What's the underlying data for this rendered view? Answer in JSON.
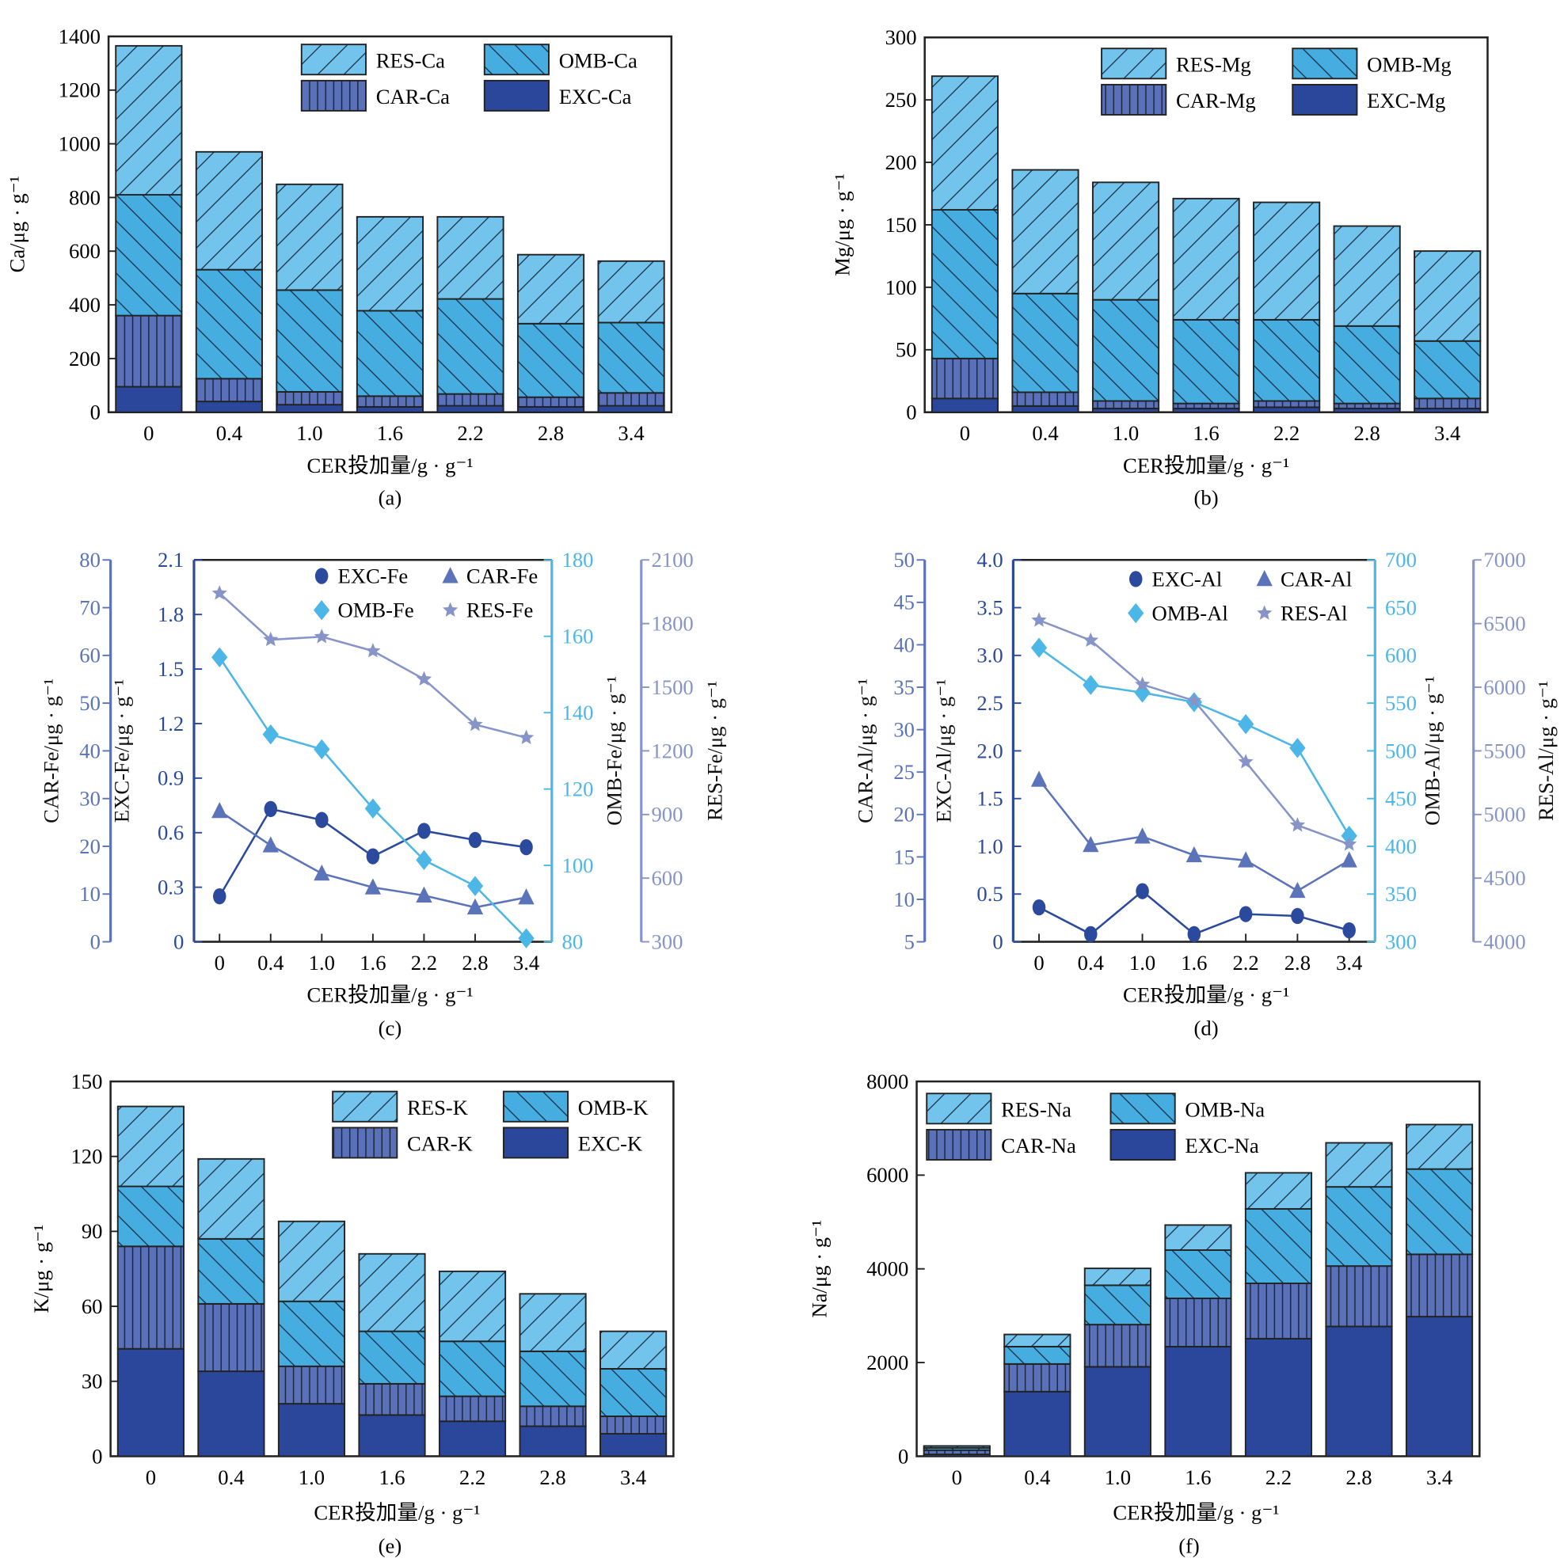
{
  "colors": {
    "RES": "#72c4ec",
    "OMB": "#45ade0",
    "CAR": "#5a70b8",
    "EXC": "#2b479b",
    "line_EXC": "#2b4a9e",
    "line_CAR": "#5b73b8",
    "line_OMB": "#4cb6e6",
    "line_RES": "#8794c8"
  },
  "chart_data": [
    {
      "type": "bar",
      "stacked": true,
      "caption": "(a)",
      "ylabel": "Ca/μg · g⁻¹",
      "xlabel": "CER投加量/g · g⁻¹",
      "categories": [
        "0",
        "0.4",
        "1.0",
        "1.6",
        "2.2",
        "2.8",
        "3.4"
      ],
      "ylim": [
        0,
        1400
      ],
      "yticks": [
        "0",
        "200",
        "400",
        "600",
        "800",
        "1000",
        "1200",
        "1400"
      ],
      "legend": "top-right",
      "series": [
        {
          "name": "EXC-Ca",
          "key": "EXC",
          "values": [
            95,
            40,
            28,
            20,
            24,
            20,
            24
          ]
        },
        {
          "name": "CAR-Ca",
          "key": "CAR",
          "values": [
            265,
            85,
            48,
            40,
            44,
            36,
            48
          ]
        },
        {
          "name": "OMB-Ca",
          "key": "OMB",
          "values": [
            450,
            406,
            379,
            318,
            354,
            274,
            262
          ]
        },
        {
          "name": "RES-Ca",
          "key": "RES",
          "values": [
            555,
            439,
            394,
            350,
            306,
            257,
            229
          ]
        }
      ]
    },
    {
      "type": "bar",
      "stacked": true,
      "caption": "(b)",
      "ylabel": "Mg/μg · g⁻¹",
      "xlabel": "CER投加量/g · g⁻¹",
      "categories": [
        "0",
        "0.4",
        "1.0",
        "1.6",
        "2.2",
        "2.8",
        "3.4"
      ],
      "ylim": [
        0,
        300
      ],
      "yticks": [
        "0",
        "50",
        "100",
        "150",
        "200",
        "250",
        "300"
      ],
      "legend": "top-right",
      "series": [
        {
          "name": "EXC-Mg",
          "key": "EXC",
          "values": [
            11,
            5,
            3,
            3,
            4,
            3,
            3
          ]
        },
        {
          "name": "CAR-Mg",
          "key": "CAR",
          "values": [
            32,
            11,
            6,
            4,
            5,
            4,
            8
          ]
        },
        {
          "name": "OMB-Mg",
          "key": "OMB",
          "values": [
            119,
            79,
            81,
            67,
            65,
            62,
            46
          ]
        },
        {
          "name": "RES-Mg",
          "key": "RES",
          "values": [
            107,
            99,
            94,
            97,
            94,
            80,
            72
          ]
        }
      ]
    },
    {
      "type": "line",
      "caption": "(c)",
      "xlabel": "CER投加量/g · g⁻¹",
      "categories": [
        "0",
        "0.4",
        "1.0",
        "1.6",
        "2.2",
        "2.8",
        "3.4"
      ],
      "legend": "top-right",
      "series": [
        {
          "name": "EXC-Fe",
          "key": "EXC",
          "marker": "circle",
          "ylabel": "EXC-Fe/μg · g⁻¹",
          "ylim": [
            0,
            2.1
          ],
          "yticks": [
            "0",
            "0.3",
            "0.6",
            "0.9",
            "1.2",
            "1.5",
            "1.8",
            "2.1"
          ],
          "values": [
            0.25,
            0.73,
            0.67,
            0.47,
            0.61,
            0.56,
            0.52
          ]
        },
        {
          "name": "CAR-Fe",
          "key": "CAR",
          "marker": "triangle",
          "ylabel": "CAR-Fe/μg · g⁻¹",
          "ylim": [
            0,
            80
          ],
          "yticks": [
            "0",
            "10",
            "20",
            "30",
            "40",
            "50",
            "60",
            "70",
            "80"
          ],
          "values": [
            27.4,
            20.2,
            14.3,
            11.4,
            9.7,
            7.2,
            9.3
          ]
        },
        {
          "name": "OMB-Fe",
          "key": "OMB",
          "marker": "diamond",
          "ylabel": "OMB-Fe/μg · g⁻¹",
          "ylim": [
            80,
            180
          ],
          "yticks": [
            "80",
            "100",
            "120",
            "140",
            "160",
            "180"
          ],
          "values": [
            154.5,
            134.3,
            130.4,
            114.9,
            101.4,
            94.6,
            80.9
          ]
        },
        {
          "name": "RES-Fe",
          "key": "RES",
          "marker": "star",
          "ylabel": "RES-Fe/μg · g⁻¹",
          "ylim": [
            300,
            2100
          ],
          "yticks": [
            "300",
            "600",
            "900",
            "1200",
            "1500",
            "1800",
            "2100"
          ],
          "values": [
            1943,
            1724,
            1738,
            1671,
            1538,
            1324,
            1262
          ]
        }
      ]
    },
    {
      "type": "line",
      "caption": "(d)",
      "xlabel": "CER投加量/g · g⁻¹",
      "categories": [
        "0",
        "0.4",
        "1.0",
        "1.6",
        "2.2",
        "2.8",
        "3.4"
      ],
      "legend": "top-right",
      "series": [
        {
          "name": "EXC-Al",
          "key": "EXC",
          "marker": "circle",
          "ylabel": "EXC-Al/μg · g⁻¹",
          "ylim": [
            0,
            4.0
          ],
          "yticks": [
            "0",
            "0.5",
            "1.0",
            "1.5",
            "2.0",
            "2.5",
            "3.0",
            "3.5",
            "4.0"
          ],
          "values": [
            0.36,
            0.08,
            0.53,
            0.08,
            0.29,
            0.27,
            0.12
          ]
        },
        {
          "name": "CAR-Al",
          "key": "CAR",
          "marker": "triangle",
          "ylabel": "CAR-Al/μg · g⁻¹",
          "ylim": [
            5,
            50
          ],
          "yticks": [
            "5",
            "10",
            "15",
            "20",
            "25",
            "30",
            "35",
            "40",
            "45",
            "50"
          ],
          "values": [
            24.1,
            16.4,
            17.4,
            15.2,
            14.6,
            11.0,
            14.6
          ]
        },
        {
          "name": "OMB-Al",
          "key": "OMB",
          "marker": "diamond",
          "ylabel": "OMB-Al/μg · g⁻¹",
          "ylim": [
            300,
            700
          ],
          "yticks": [
            "300",
            "350",
            "400",
            "450",
            "500",
            "550",
            "600",
            "650",
            "700"
          ],
          "values": [
            608,
            569,
            561,
            551,
            528,
            503,
            411
          ]
        },
        {
          "name": "RES-Al",
          "key": "RES",
          "marker": "star",
          "ylabel": "RES-Al/μg · g⁻¹",
          "ylim": [
            4000,
            7000
          ],
          "yticks": [
            "4000",
            "4500",
            "5000",
            "5500",
            "6000",
            "6500",
            "7000"
          ],
          "values": [
            6526,
            6368,
            6021,
            5894,
            5413,
            4916,
            4766
          ]
        }
      ]
    },
    {
      "type": "bar",
      "stacked": true,
      "caption": "(e)",
      "ylabel": "K/μg · g⁻¹",
      "xlabel": "CER投加量/g · g⁻¹",
      "categories": [
        "0",
        "0.4",
        "1.0",
        "1.6",
        "2.2",
        "2.8",
        "3.4"
      ],
      "ylim": [
        0,
        150
      ],
      "yticks": [
        "0",
        "30",
        "60",
        "90",
        "120",
        "150"
      ],
      "legend": "top-right",
      "series": [
        {
          "name": "EXC-K",
          "key": "EXC",
          "values": [
            43,
            34,
            21,
            16.5,
            14,
            12,
            9
          ]
        },
        {
          "name": "CAR-K",
          "key": "CAR",
          "values": [
            41,
            27,
            15,
            12.5,
            10,
            8,
            7
          ]
        },
        {
          "name": "OMB-K",
          "key": "OMB",
          "values": [
            24,
            26,
            26,
            21,
            22,
            22,
            19
          ]
        },
        {
          "name": "RES-K",
          "key": "RES",
          "values": [
            32,
            32,
            32,
            31,
            28,
            23,
            15
          ]
        }
      ]
    },
    {
      "type": "bar",
      "stacked": true,
      "caption": "(f)",
      "ylabel": "Na/μg · g⁻¹",
      "xlabel": "CER投加量/g · g⁻¹",
      "categories": [
        "0",
        "0.4",
        "1.0",
        "1.6",
        "2.2",
        "2.8",
        "3.4"
      ],
      "ylim": [
        0,
        8000
      ],
      "yticks": [
        "0",
        "2000",
        "4000",
        "6000",
        "8000"
      ],
      "legend": "top-left",
      "series": [
        {
          "name": "EXC-Na",
          "key": "EXC",
          "values": [
            40,
            1380,
            1910,
            2340,
            2510,
            2770,
            2980
          ]
        },
        {
          "name": "CAR-Na",
          "key": "CAR",
          "values": [
            90,
            590,
            900,
            1030,
            1180,
            1290,
            1330
          ]
        },
        {
          "name": "OMB-Na",
          "key": "OMB",
          "values": [
            50,
            370,
            840,
            1030,
            1590,
            1690,
            1820
          ]
        },
        {
          "name": "RES-Na",
          "key": "RES",
          "values": [
            40,
            260,
            360,
            535,
            770,
            940,
            950
          ]
        }
      ]
    }
  ]
}
